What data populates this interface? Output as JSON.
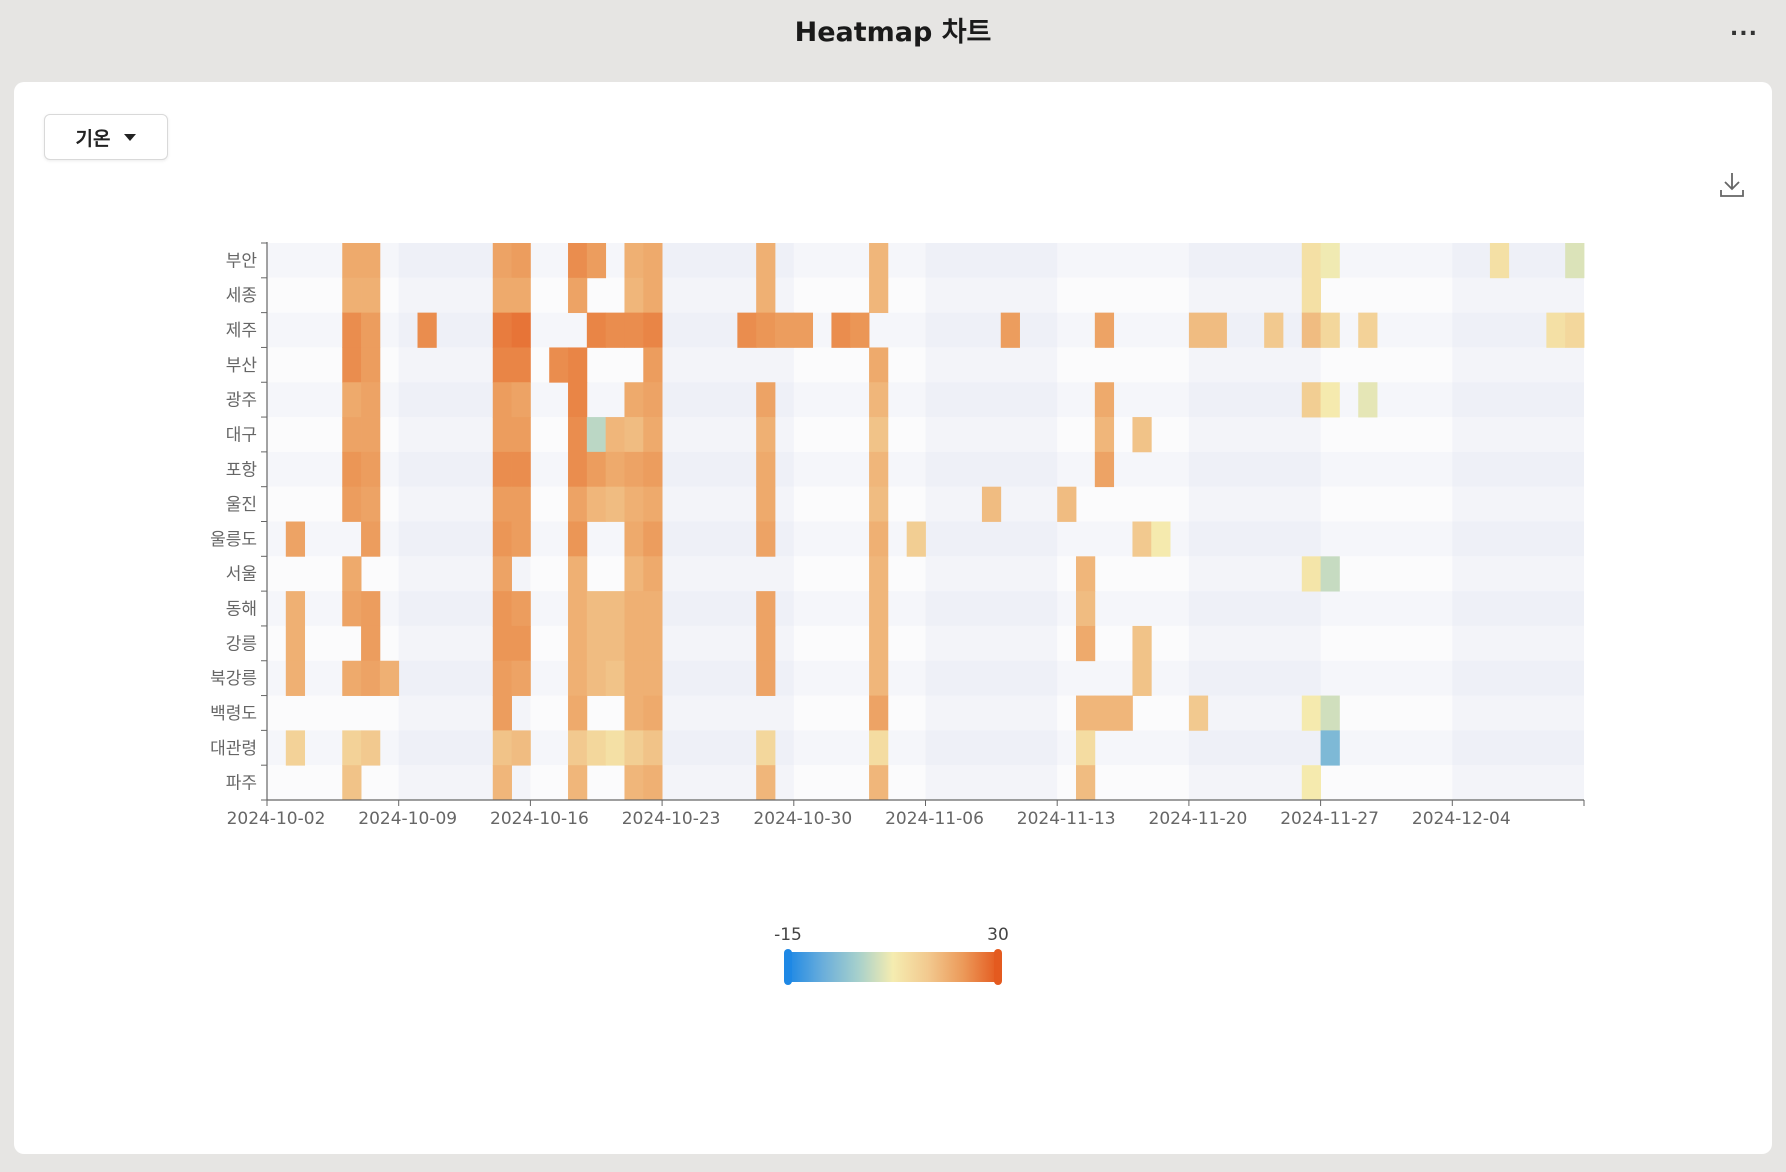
{
  "header": {
    "title": "Heatmap 차트",
    "more_label": "..."
  },
  "toolbar": {
    "metric_selected": "기온",
    "download_icon": "download-icon"
  },
  "colors": {
    "scale": [
      "#1e88e5",
      "#6aaedb",
      "#a6d0cc",
      "#f5ecb0",
      "#f2c98f",
      "#ec9a5a",
      "#e45a1f"
    ],
    "background_stripe": "#f5f6fa"
  },
  "chart_data": {
    "type": "heatmap",
    "x_tick_labels": [
      "2024-10-02",
      "2024-10-09",
      "2024-10-16",
      "2024-10-23",
      "2024-10-30",
      "2024-11-06",
      "2024-11-13",
      "2024-11-20",
      "2024-11-27",
      "2024-12-04"
    ],
    "x_range": [
      "2024-10-02",
      "2024-12-10"
    ],
    "y_categories": [
      "부안",
      "세종",
      "제주",
      "부산",
      "광주",
      "대구",
      "포항",
      "울진",
      "울릉도",
      "서울",
      "동해",
      "강릉",
      "북강릉",
      "백령도",
      "대관령",
      "파주"
    ],
    "visual_map": {
      "min": -15,
      "max": 30
    },
    "cells": [
      [
        "부안",
        "2024-10-06",
        20
      ],
      [
        "부안",
        "2024-10-07",
        20
      ],
      [
        "부안",
        "2024-10-14",
        21
      ],
      [
        "부안",
        "2024-10-15",
        22
      ],
      [
        "부안",
        "2024-10-18",
        24
      ],
      [
        "부안",
        "2024-10-19",
        22
      ],
      [
        "부안",
        "2024-10-21",
        19
      ],
      [
        "부안",
        "2024-10-22",
        20
      ],
      [
        "부안",
        "2024-10-28",
        19
      ],
      [
        "부안",
        "2024-11-03",
        18
      ],
      [
        "부안",
        "2024-11-26",
        10
      ],
      [
        "부안",
        "2024-11-27",
        7
      ],
      [
        "부안",
        "2024-12-06",
        10
      ],
      [
        "부안",
        "2024-12-10",
        5
      ],
      [
        "세종",
        "2024-10-06",
        19
      ],
      [
        "세종",
        "2024-10-07",
        19
      ],
      [
        "세종",
        "2024-10-14",
        20
      ],
      [
        "세종",
        "2024-10-15",
        20
      ],
      [
        "세종",
        "2024-10-18",
        21
      ],
      [
        "세종",
        "2024-10-21",
        18
      ],
      [
        "세종",
        "2024-10-22",
        20
      ],
      [
        "세종",
        "2024-10-28",
        19
      ],
      [
        "세종",
        "2024-11-03",
        18
      ],
      [
        "세종",
        "2024-11-26",
        10
      ],
      [
        "제주",
        "2024-10-06",
        24
      ],
      [
        "제주",
        "2024-10-07",
        22
      ],
      [
        "제주",
        "2024-10-10",
        24
      ],
      [
        "제주",
        "2024-10-14",
        26
      ],
      [
        "제주",
        "2024-10-15",
        27
      ],
      [
        "제주",
        "2024-10-19",
        25
      ],
      [
        "제주",
        "2024-10-20",
        24
      ],
      [
        "제주",
        "2024-10-21",
        24
      ],
      [
        "제주",
        "2024-10-22",
        25
      ],
      [
        "제주",
        "2024-10-27",
        24
      ],
      [
        "제주",
        "2024-10-28",
        23
      ],
      [
        "제주",
        "2024-10-29",
        22
      ],
      [
        "제주",
        "2024-10-30",
        22
      ],
      [
        "제주",
        "2024-11-01",
        24
      ],
      [
        "제주",
        "2024-11-02",
        23
      ],
      [
        "제주",
        "2024-11-10",
        22
      ],
      [
        "제주",
        "2024-11-15",
        21
      ],
      [
        "제주",
        "2024-11-20",
        17
      ],
      [
        "제주",
        "2024-11-21",
        17
      ],
      [
        "제주",
        "2024-11-24",
        15
      ],
      [
        "제주",
        "2024-11-26",
        17
      ],
      [
        "제주",
        "2024-11-27",
        12
      ],
      [
        "제주",
        "2024-11-29",
        13
      ],
      [
        "제주",
        "2024-12-09",
        10
      ],
      [
        "제주",
        "2024-12-10",
        12
      ],
      [
        "부산",
        "2024-10-06",
        24
      ],
      [
        "부산",
        "2024-10-07",
        22
      ],
      [
        "부산",
        "2024-10-14",
        25
      ],
      [
        "부산",
        "2024-10-15",
        25
      ],
      [
        "부산",
        "2024-10-17",
        24
      ],
      [
        "부산",
        "2024-10-18",
        25
      ],
      [
        "부산",
        "2024-10-22",
        22
      ],
      [
        "부산",
        "2024-11-03",
        20
      ],
      [
        "광주",
        "2024-10-06",
        20
      ],
      [
        "광주",
        "2024-10-07",
        21
      ],
      [
        "광주",
        "2024-10-14",
        22
      ],
      [
        "광주",
        "2024-10-15",
        21
      ],
      [
        "광주",
        "2024-10-18",
        25
      ],
      [
        "광주",
        "2024-10-21",
        20
      ],
      [
        "광주",
        "2024-10-22",
        21
      ],
      [
        "광주",
        "2024-10-28",
        21
      ],
      [
        "광주",
        "2024-11-03",
        18
      ],
      [
        "광주",
        "2024-11-15",
        20
      ],
      [
        "광주",
        "2024-11-26",
        14
      ],
      [
        "광주",
        "2024-11-27",
        8
      ],
      [
        "광주",
        "2024-11-29",
        6
      ],
      [
        "대구",
        "2024-10-06",
        21
      ],
      [
        "대구",
        "2024-10-07",
        21
      ],
      [
        "대구",
        "2024-10-14",
        22
      ],
      [
        "대구",
        "2024-10-15",
        22
      ],
      [
        "대구",
        "2024-10-18",
        24
      ],
      [
        "대구",
        "2024-10-19",
        2
      ],
      [
        "대구",
        "2024-10-20",
        18
      ],
      [
        "대구",
        "2024-10-21",
        17
      ],
      [
        "대구",
        "2024-10-22",
        20
      ],
      [
        "대구",
        "2024-10-28",
        19
      ],
      [
        "대구",
        "2024-11-03",
        16
      ],
      [
        "대구",
        "2024-11-15",
        18
      ],
      [
        "대구",
        "2024-11-17",
        16
      ],
      [
        "포항",
        "2024-10-06",
        23
      ],
      [
        "포항",
        "2024-10-07",
        22
      ],
      [
        "포항",
        "2024-10-14",
        24
      ],
      [
        "포항",
        "2024-10-15",
        24
      ],
      [
        "포항",
        "2024-10-18",
        24
      ],
      [
        "포항",
        "2024-10-19",
        22
      ],
      [
        "포항",
        "2024-10-20",
        20
      ],
      [
        "포항",
        "2024-10-21",
        21
      ],
      [
        "포항",
        "2024-10-22",
        22
      ],
      [
        "포항",
        "2024-10-28",
        20
      ],
      [
        "포항",
        "2024-11-03",
        18
      ],
      [
        "포항",
        "2024-11-15",
        21
      ],
      [
        "울진",
        "2024-10-06",
        22
      ],
      [
        "울진",
        "2024-10-07",
        21
      ],
      [
        "울진",
        "2024-10-14",
        22
      ],
      [
        "울진",
        "2024-10-15",
        22
      ],
      [
        "울진",
        "2024-10-18",
        21
      ],
      [
        "울진",
        "2024-10-19",
        18
      ],
      [
        "울진",
        "2024-10-20",
        17
      ],
      [
        "울진",
        "2024-10-21",
        19
      ],
      [
        "울진",
        "2024-10-22",
        20
      ],
      [
        "울진",
        "2024-10-28",
        20
      ],
      [
        "울진",
        "2024-11-03",
        17
      ],
      [
        "울진",
        "2024-11-09",
        17
      ],
      [
        "울진",
        "2024-11-13",
        17
      ],
      [
        "울릉도",
        "2024-10-03",
        21
      ],
      [
        "울릉도",
        "2024-10-07",
        22
      ],
      [
        "울릉도",
        "2024-10-14",
        23
      ],
      [
        "울릉도",
        "2024-10-15",
        22
      ],
      [
        "울릉도",
        "2024-10-18",
        23
      ],
      [
        "울릉도",
        "2024-10-21",
        20
      ],
      [
        "울릉도",
        "2024-10-22",
        22
      ],
      [
        "울릉도",
        "2024-10-28",
        21
      ],
      [
        "울릉도",
        "2024-11-03",
        19
      ],
      [
        "울릉도",
        "2024-11-05",
        14
      ],
      [
        "울릉도",
        "2024-11-17",
        15
      ],
      [
        "울릉도",
        "2024-11-18",
        8
      ],
      [
        "서울",
        "2024-10-06",
        20
      ],
      [
        "서울",
        "2024-10-14",
        21
      ],
      [
        "서울",
        "2024-10-18",
        19
      ],
      [
        "서울",
        "2024-10-21",
        18
      ],
      [
        "서울",
        "2024-10-22",
        20
      ],
      [
        "서울",
        "2024-11-03",
        18
      ],
      [
        "서울",
        "2024-11-14",
        18
      ],
      [
        "서울",
        "2024-11-26",
        9
      ],
      [
        "서울",
        "2024-11-27",
        3
      ],
      [
        "동해",
        "2024-10-03",
        19
      ],
      [
        "동해",
        "2024-10-06",
        21
      ],
      [
        "동해",
        "2024-10-07",
        22
      ],
      [
        "동해",
        "2024-10-14",
        23
      ],
      [
        "동해",
        "2024-10-15",
        22
      ],
      [
        "동해",
        "2024-10-18",
        19
      ],
      [
        "동해",
        "2024-10-19",
        17
      ],
      [
        "동해",
        "2024-10-20",
        17
      ],
      [
        "동해",
        "2024-10-21",
        19
      ],
      [
        "동해",
        "2024-10-22",
        19
      ],
      [
        "동해",
        "2024-10-28",
        21
      ],
      [
        "동해",
        "2024-11-03",
        18
      ],
      [
        "동해",
        "2024-11-14",
        17
      ],
      [
        "강릉",
        "2024-10-03",
        19
      ],
      [
        "강릉",
        "2024-10-07",
        22
      ],
      [
        "강릉",
        "2024-10-14",
        23
      ],
      [
        "강릉",
        "2024-10-15",
        23
      ],
      [
        "강릉",
        "2024-10-18",
        19
      ],
      [
        "강릉",
        "2024-10-19",
        17
      ],
      [
        "강릉",
        "2024-10-20",
        17
      ],
      [
        "강릉",
        "2024-10-21",
        19
      ],
      [
        "강릉",
        "2024-10-22",
        19
      ],
      [
        "강릉",
        "2024-10-28",
        21
      ],
      [
        "강릉",
        "2024-11-03",
        18
      ],
      [
        "강릉",
        "2024-11-14",
        20
      ],
      [
        "강릉",
        "2024-11-17",
        16
      ],
      [
        "북강릉",
        "2024-10-03",
        19
      ],
      [
        "북강릉",
        "2024-10-06",
        20
      ],
      [
        "북강릉",
        "2024-10-07",
        21
      ],
      [
        "북강릉",
        "2024-10-08",
        19
      ],
      [
        "북강릉",
        "2024-10-14",
        22
      ],
      [
        "북강릉",
        "2024-10-15",
        21
      ],
      [
        "북강릉",
        "2024-10-18",
        19
      ],
      [
        "북강릉",
        "2024-10-19",
        17
      ],
      [
        "북강릉",
        "2024-10-20",
        16
      ],
      [
        "북강릉",
        "2024-10-21",
        19
      ],
      [
        "북강릉",
        "2024-10-22",
        19
      ],
      [
        "북강릉",
        "2024-10-28",
        21
      ],
      [
        "북강릉",
        "2024-11-03",
        18
      ],
      [
        "북강릉",
        "2024-11-17",
        16
      ],
      [
        "백령도",
        "2024-10-14",
        22
      ],
      [
        "백령도",
        "2024-10-18",
        20
      ],
      [
        "백령도",
        "2024-10-21",
        19
      ],
      [
        "백령도",
        "2024-10-22",
        20
      ],
      [
        "백령도",
        "2024-11-03",
        21
      ],
      [
        "백령도",
        "2024-11-14",
        18
      ],
      [
        "백령도",
        "2024-11-15",
        18
      ],
      [
        "백령도",
        "2024-11-16",
        18
      ],
      [
        "백령도",
        "2024-11-20",
        15
      ],
      [
        "백령도",
        "2024-11-26",
        8
      ],
      [
        "백령도",
        "2024-11-27",
        4
      ],
      [
        "대관령",
        "2024-10-03",
        13
      ],
      [
        "대관령",
        "2024-10-06",
        13
      ],
      [
        "대관령",
        "2024-10-07",
        15
      ],
      [
        "대관령",
        "2024-10-14",
        16
      ],
      [
        "대관령",
        "2024-10-15",
        17
      ],
      [
        "대관령",
        "2024-10-18",
        15
      ],
      [
        "대관령",
        "2024-10-19",
        12
      ],
      [
        "대관령",
        "2024-10-20",
        10
      ],
      [
        "대관령",
        "2024-10-21",
        14
      ],
      [
        "대관령",
        "2024-10-22",
        16
      ],
      [
        "대관령",
        "2024-10-28",
        12
      ],
      [
        "대관령",
        "2024-11-03",
        11
      ],
      [
        "대관령",
        "2024-11-14",
        11
      ],
      [
        "대관령",
        "2024-11-27",
        -5
      ],
      [
        "파주",
        "2024-10-06",
        16
      ],
      [
        "파주",
        "2024-10-14",
        18
      ],
      [
        "파주",
        "2024-10-18",
        18
      ],
      [
        "파주",
        "2024-10-21",
        18
      ],
      [
        "파주",
        "2024-10-22",
        19
      ],
      [
        "파주",
        "2024-10-28",
        18
      ],
      [
        "파주",
        "2024-11-03",
        18
      ],
      [
        "파주",
        "2024-11-14",
        17
      ],
      [
        "파주",
        "2024-11-26",
        8
      ]
    ]
  }
}
